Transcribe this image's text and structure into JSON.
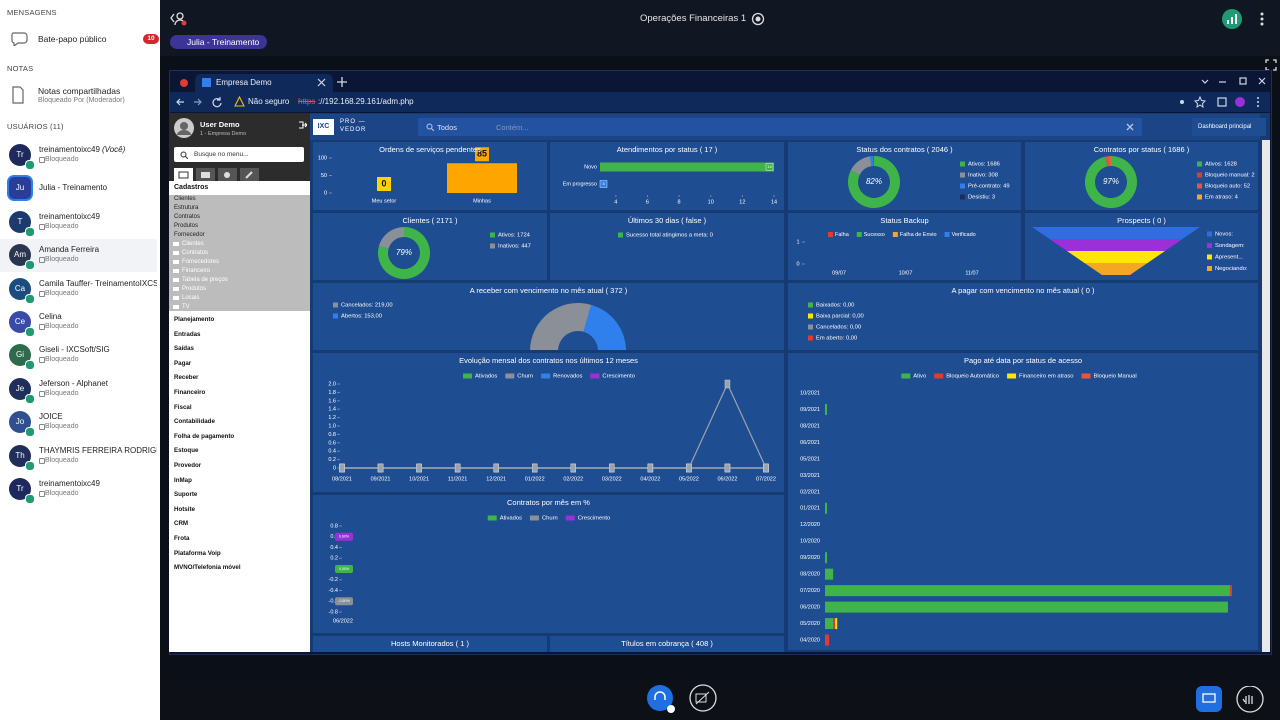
{
  "sidebar": {
    "messages_heading": "MENSAGENS",
    "public_chat": "Bate-papo público",
    "unread": "10",
    "notes_heading": "NOTAS",
    "shared_notes": "Notas compartilhadas",
    "notes_status": "Bloqueado Por (Moderador)",
    "users_heading": "USUÁRIOS (11)",
    "users": [
      {
        "initials": "Tr",
        "name": "treinamentoixc49",
        "you": "(Você)",
        "status": "Bloqueado"
      },
      {
        "initials": "Ju",
        "name": "Julia - Treinamento"
      },
      {
        "initials": "T",
        "name": "treinamentoixc49",
        "status": "Bloqueado"
      },
      {
        "initials": "Am",
        "name": "Amanda Ferreira",
        "status": "Bloqueado"
      },
      {
        "initials": "Ca",
        "name": "Camila Tauffer- TreinamentoIXCSoft",
        "status": "Bloqueado"
      },
      {
        "initials": "Ce",
        "name": "Celina",
        "status": "Bloqueado"
      },
      {
        "initials": "Gi",
        "name": "Giseli - IXCSoft/SIG",
        "status": "Bloqueado"
      },
      {
        "initials": "Je",
        "name": "Jeferson - Alphanet",
        "status": "Bloqueado"
      },
      {
        "initials": "Jo",
        "name": "JOICE",
        "status": "Bloqueado"
      },
      {
        "initials": "Th",
        "name": "THAYMRIS FERREIRA RODRIGUES",
        "status": "Bloqueado"
      },
      {
        "initials": "Tr",
        "name": "treinamentoixc49",
        "status": "Bloqueado"
      }
    ]
  },
  "session": {
    "title": "Operações Financeiras 1",
    "presenter": "Julia - Treinamento"
  },
  "browser": {
    "tab_title": "Empresa Demo",
    "security": "Não seguro",
    "url_scheme": "https",
    "url_path": "://192.168.29.161/adm.php"
  },
  "app": {
    "user_name": "User Demo",
    "company": "1 - Empresa Demo",
    "menu_search": "Busque no menu...",
    "open_section": "Cadastros",
    "section_links": [
      "Clientes",
      "Estrutura",
      "Contratos",
      "Produtos",
      "Fornecedor"
    ],
    "section_folders": [
      "Clientes",
      "Contratos",
      "Fornecedores",
      "Financeiro",
      "Tabela de preços",
      "Produtos",
      "Locais",
      "TV"
    ],
    "sections": [
      "Planejamento",
      "Entradas",
      "Saídas",
      "Pagar",
      "Receber",
      "Financeiro",
      "Fiscal",
      "Contabilidade",
      "Folha de pagamento",
      "Estoque",
      "Provedor",
      "InMap",
      "Suporte",
      "Hotsite",
      "CRM",
      "Frota",
      "Plataforma Voip",
      "MVNO/Telefonia móvel"
    ],
    "logo": "IXC",
    "logo_line1": "PRO —",
    "logo_line2": "VEDOR",
    "filter": "Todos",
    "filter_placeholder": "Contém...",
    "dashboard": "Dashboard principal"
  },
  "dashboard": [
    {
      "type": "bar",
      "title": "Ordens de serviços pendentes",
      "categories": [
        "Meu setor",
        "Minhas"
      ],
      "values": [
        0,
        85
      ],
      "colors": [
        "#ffd400",
        "#ffa500"
      ],
      "ylim": [
        0,
        100
      ],
      "yticks": [
        0,
        50,
        100
      ]
    },
    {
      "type": "hbar",
      "title": "Atendimentos por status ( 17 )",
      "categories": [
        "Novo",
        "Em progresso"
      ],
      "values": [
        14,
        3
      ],
      "colors": [
        "#3fb549",
        "#2f80ed"
      ],
      "xlim": [
        3,
        14
      ],
      "xticks": [
        4,
        6,
        8,
        10,
        12,
        14
      ]
    },
    {
      "type": "donut",
      "title": "Status dos contratos ( 2046 )",
      "center_label": "82%",
      "items": [
        {
          "label": "Ativos: 1686",
          "value": 1686,
          "color": "#3fb549"
        },
        {
          "label": "Inativo: 308",
          "value": 308,
          "color": "#8a8f98"
        },
        {
          "label": "Pré-contrato: 49",
          "value": 49,
          "color": "#2f80ed"
        },
        {
          "label": "Desistiu: 3",
          "value": 3,
          "color": "#1c2a5c"
        }
      ]
    },
    {
      "type": "donut",
      "title": "Contratos por status ( 1686 )",
      "center_label": "97%",
      "items": [
        {
          "label": "Ativos: 1628",
          "value": 1628,
          "color": "#3fb549"
        },
        {
          "label": "Bloqueio manual: 2",
          "value": 2,
          "color": "#e03c31"
        },
        {
          "label": "Bloqueio auto: 52",
          "value": 52,
          "color": "#e8553a"
        },
        {
          "label": "Em atraso: 4",
          "value": 4,
          "color": "#f5a623"
        }
      ]
    },
    {
      "type": "donut",
      "title": "Clientes ( 2171 )",
      "center_label": "79%",
      "items": [
        {
          "label": "Ativos: 1724",
          "value": 1724,
          "color": "#3fb549"
        },
        {
          "label": "Inativos: 447",
          "value": 447,
          "color": "#8a8f98"
        }
      ]
    },
    {
      "type": "legend",
      "title": "Últimos 30 dias ( false )",
      "items": [
        {
          "label": "Sucesso total atingimos a meta: 0",
          "value": 0,
          "color": "#3fb549"
        }
      ]
    },
    {
      "type": "backup",
      "title": "Status Backup",
      "series": [
        {
          "name": "Falha",
          "color": "#e03c31"
        },
        {
          "name": "Sucesso",
          "color": "#3fb549"
        },
        {
          "name": "Falha de Envio",
          "color": "#f5a623"
        },
        {
          "name": "Verificado",
          "color": "#2f80ed"
        }
      ],
      "categories": [
        "09/07",
        "10/07",
        "11/07"
      ],
      "ylim": [
        0,
        1
      ],
      "yticks": [
        0,
        1
      ]
    },
    {
      "type": "funnel",
      "title": "Prospects ( 0 )",
      "series": [
        {
          "name": "Novos:",
          "color": "#2f6ee0"
        },
        {
          "name": "Sondagem:",
          "color": "#9b30d9"
        },
        {
          "name": "Apresent...",
          "color": "#ffe600"
        },
        {
          "name": "Negociando:",
          "color": "#f5a623"
        }
      ]
    },
    {
      "type": "halfdonut",
      "title": "A receber com vencimento no mês atual ( 372 )",
      "items": [
        {
          "label": "Cancelados: 219,00",
          "value": 219,
          "color": "#8a8f98"
        },
        {
          "label": "Abertos: 153,00",
          "value": 153,
          "color": "#2f80ed"
        }
      ]
    },
    {
      "type": "legend",
      "title": "A pagar com vencimento no mês atual ( 0 )",
      "items": [
        {
          "label": "Baixados: 0,00",
          "value": 0,
          "color": "#3fb549"
        },
        {
          "label": "Baixa parcial: 0,00",
          "value": 0,
          "color": "#ffe600"
        },
        {
          "label": "Cancelados: 0,00",
          "value": 0,
          "color": "#8a8f98"
        },
        {
          "label": "Em aberto: 0,00",
          "value": 0,
          "color": "#e03c31"
        }
      ]
    },
    {
      "type": "line",
      "title": "Evolução mensal dos contratos nos últimos 12 meses",
      "x": [
        "08/2021",
        "09/2021",
        "10/2021",
        "11/2021",
        "12/2021",
        "01/2022",
        "02/2022",
        "03/2022",
        "04/2022",
        "05/2022",
        "06/2022",
        "07/2022"
      ],
      "series": [
        {
          "name": "Ativados",
          "color": "#3fb549",
          "values": [
            0,
            0,
            0,
            0,
            0,
            0,
            0,
            0,
            0,
            0,
            0,
            0
          ]
        },
        {
          "name": "Churn",
          "color": "#8a8f98",
          "values": [
            0,
            0,
            0,
            0,
            0,
            0,
            0,
            0,
            0,
            0,
            2,
            0
          ]
        },
        {
          "name": "Renovados",
          "color": "#2f80ed",
          "values": [
            0,
            0,
            0,
            0,
            0,
            0,
            0,
            0,
            0,
            0,
            0,
            0
          ]
        },
        {
          "name": "Crescimento",
          "color": "#9b30d9",
          "values": [
            0,
            0,
            0,
            0,
            0,
            0,
            0,
            0,
            0,
            0,
            0,
            0
          ]
        }
      ],
      "ylim": [
        0,
        2
      ],
      "yticks": [
        0,
        0.2,
        0.4,
        0.6,
        0.8,
        {
          "value": 1,
          "label": "1.0"
        },
        1.2,
        1.4,
        1.6,
        1.8,
        {
          "value": 2,
          "label": "2.0"
        }
      ]
    },
    {
      "type": "pct",
      "title": "Contratos por mês em %",
      "x": [
        "06/2022"
      ],
      "series": [
        {
          "name": "Ativados",
          "color": "#3fb549",
          "values": [
            0
          ],
          "value_labels": [
            "0,00%"
          ]
        },
        {
          "name": "Churn",
          "color": "#8a8f98",
          "values": [
            -0.6
          ],
          "value_labels": [
            "-0,60%"
          ]
        },
        {
          "name": "Crescimento",
          "color": "#9b30d9",
          "values": [
            0.6
          ],
          "value_labels": [
            "0,60%"
          ]
        }
      ],
      "ylim": [
        -0.8,
        0.8
      ],
      "yticks": [
        -0.8,
        -0.6,
        -0.4,
        -0.2,
        0,
        0.2,
        0.4,
        0.6,
        0.8
      ]
    },
    {
      "type": "hstack",
      "title": "Pago até data por status de acesso",
      "categories": [
        "10/2021",
        "09/2021",
        "08/2021",
        "06/2021",
        "05/2021",
        "03/2021",
        "02/2021",
        "01/2021",
        "12/2020",
        "10/2020",
        "09/2020",
        "08/2020",
        "07/2020",
        "06/2020",
        "05/2020",
        "04/2020"
      ],
      "series": [
        {
          "name": "Ativo",
          "color": "#3fb549",
          "values": [
            0,
            0.5,
            0,
            0,
            0,
            0,
            0,
            0.5,
            0,
            0,
            0.5,
            2,
            99.5,
            99,
            2,
            0
          ]
        },
        {
          "name": "Bloqueio Automático",
          "color": "#e03c31",
          "values": [
            0,
            0,
            0,
            0,
            0,
            0,
            0,
            0,
            0,
            0,
            0,
            0,
            0.5,
            0,
            0.5,
            1
          ]
        },
        {
          "name": "Financeiro em atraso",
          "color": "#ffe600",
          "values": [
            0,
            0,
            0,
            0,
            0,
            0,
            0,
            0,
            0,
            0,
            0,
            0,
            0,
            0,
            0.5,
            0
          ]
        },
        {
          "name": "Bloqueio Manual",
          "color": "#e8553a",
          "values": [
            0,
            0,
            0,
            0,
            0,
            0,
            0,
            0,
            0,
            0,
            0,
            0,
            0,
            0,
            0,
            0
          ]
        }
      ],
      "xlim": [
        0,
        100
      ]
    },
    {
      "type": "title",
      "title": "Hosts Monitorados ( 1 )"
    },
    {
      "type": "title",
      "title": "Títulos em cobrança ( 408 )"
    }
  ]
}
